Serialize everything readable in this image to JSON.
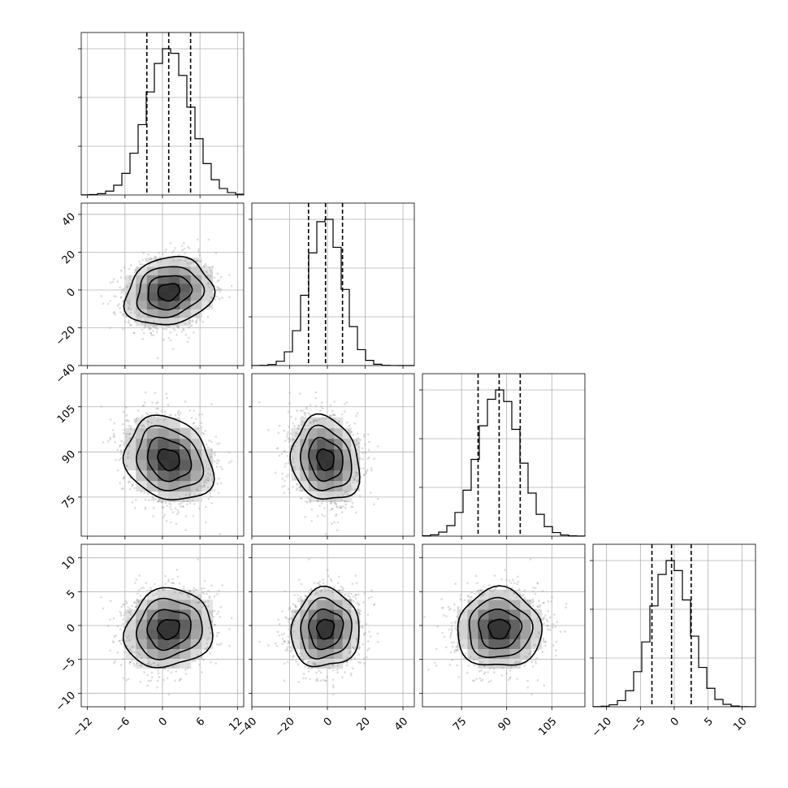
{
  "chart_data": {
    "type": "corner",
    "title": "",
    "parameters": [
      {
        "mean": 1,
        "std": 3.5,
        "quantiles": [
          -2.5,
          1.0,
          4.5
        ],
        "xlim": [
          -13,
          13
        ],
        "x_ticks": [
          -12,
          -6,
          0,
          6,
          12
        ],
        "x_tick_labels": [
          "−12",
          "−6",
          "0",
          "6",
          "12"
        ]
      },
      {
        "mean": -1,
        "std": 9,
        "quantiles": [
          -10,
          -1,
          8
        ],
        "xlim": [
          -40,
          46
        ],
        "x_ticks": [
          -40,
          -20,
          0,
          20,
          40
        ],
        "x_tick_labels": [
          "−40",
          "−20",
          "0",
          "20",
          "40"
        ],
        "y_ticks": [
          -40,
          -20,
          0,
          20,
          40
        ],
        "y_tick_labels": [
          "−40",
          "−20",
          "0",
          "20",
          "40"
        ]
      },
      {
        "mean": 87.5,
        "std": 7,
        "quantiles": [
          80.5,
          87.5,
          94.5
        ],
        "xlim": [
          62,
          116
        ],
        "x_ticks": [
          75,
          90,
          105
        ],
        "x_tick_labels": [
          "75",
          "90",
          "105"
        ],
        "y_ticks": [
          75,
          90,
          105
        ],
        "y_tick_labels": [
          "75",
          "90",
          "105"
        ]
      },
      {
        "mean": -0.5,
        "std": 2.9,
        "quantiles": [
          -3.3,
          -0.4,
          2.5
        ],
        "xlim": [
          -12,
          12
        ],
        "x_ticks": [
          -10,
          -5,
          0,
          5,
          10
        ],
        "x_tick_labels": [
          "−10",
          "−5",
          "0",
          "5",
          "10"
        ],
        "y_ticks": [
          -10,
          -5,
          0,
          5,
          10
        ],
        "y_tick_labels": [
          "−10",
          "−5",
          "0",
          "5",
          "10"
        ]
      }
    ],
    "correlations": [
      [
        1,
        0.15,
        -0.2,
        0.1
      ],
      [
        0.15,
        1,
        -0.15,
        0.05
      ],
      [
        -0.2,
        -0.15,
        1,
        0
      ],
      [
        0.1,
        0.05,
        0,
        1
      ]
    ],
    "histogram_bins": 20,
    "contour_levels_sigma": [
      0.5,
      1.0,
      1.5,
      2.0
    ],
    "grid": true,
    "histogram_peak_normalized": 1.0
  }
}
